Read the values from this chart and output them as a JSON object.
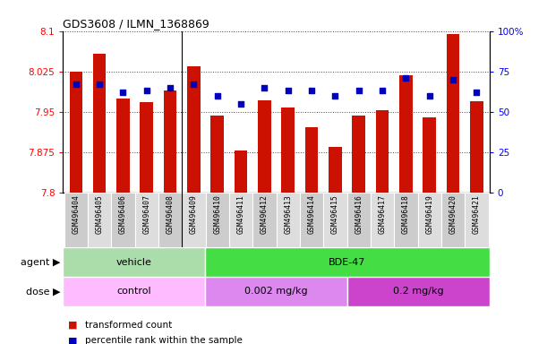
{
  "title": "GDS3608 / ILMN_1368869",
  "samples": [
    "GSM496404",
    "GSM496405",
    "GSM496406",
    "GSM496407",
    "GSM496408",
    "GSM496409",
    "GSM496410",
    "GSM496411",
    "GSM496412",
    "GSM496413",
    "GSM496414",
    "GSM496415",
    "GSM496416",
    "GSM496417",
    "GSM496418",
    "GSM496419",
    "GSM496420",
    "GSM496421"
  ],
  "transformed_count": [
    8.025,
    8.057,
    7.975,
    7.968,
    7.99,
    8.035,
    7.943,
    7.878,
    7.972,
    7.958,
    7.922,
    7.885,
    7.943,
    7.953,
    8.017,
    7.94,
    8.095,
    7.97
  ],
  "percentile": [
    67,
    67,
    62,
    63,
    65,
    67,
    60,
    55,
    65,
    63,
    63,
    60,
    63,
    63,
    71,
    60,
    70,
    62
  ],
  "bar_color": "#cc1100",
  "dot_color": "#0000bb",
  "ymin": 7.8,
  "ymax": 8.1,
  "yticks_left": [
    7.8,
    7.875,
    7.95,
    8.025,
    8.1
  ],
  "ytick_labels_left": [
    "7.8",
    "7.875",
    "7.95",
    "8.025",
    "8.1"
  ],
  "yticks_right": [
    0,
    25,
    50,
    75,
    100
  ],
  "ytick_labels_right": [
    "0",
    "25",
    "50",
    "75",
    "100%"
  ],
  "agent_groups": [
    {
      "label": "vehicle",
      "start": 0,
      "end": 6,
      "color": "#aaddaa"
    },
    {
      "label": "BDE-47",
      "start": 6,
      "end": 18,
      "color": "#44dd44"
    }
  ],
  "dose_groups": [
    {
      "label": "control",
      "start": 0,
      "end": 6,
      "color": "#ffbbff"
    },
    {
      "label": "0.002 mg/kg",
      "start": 6,
      "end": 12,
      "color": "#dd88ee"
    },
    {
      "label": "0.2 mg/kg",
      "start": 12,
      "end": 18,
      "color": "#cc44cc"
    }
  ],
  "agent_label": "agent",
  "dose_label": "dose",
  "legend_red": "transformed count",
  "legend_blue": "percentile rank within the sample",
  "bar_width": 0.55,
  "sample_bg_even": "#cccccc",
  "sample_bg_odd": "#dddddd",
  "separator_col": 5
}
